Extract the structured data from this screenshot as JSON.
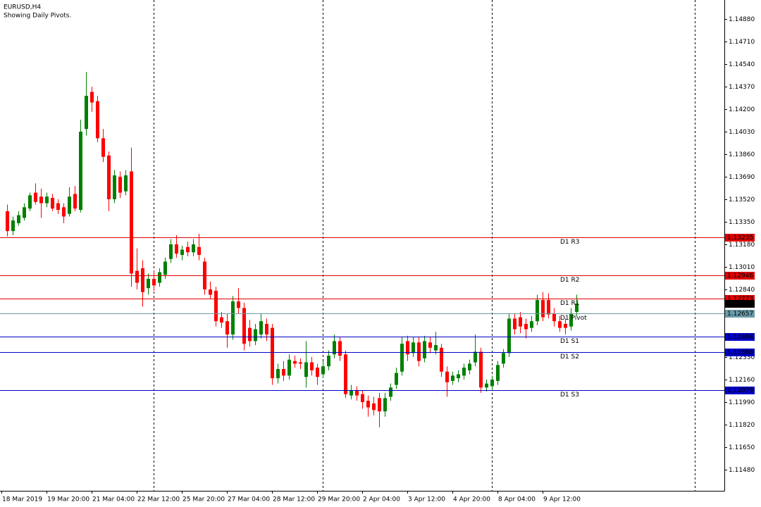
{
  "chart_data": {
    "type": "candlestick",
    "title": "EURUSD,H4",
    "subtitle": "Showing Daily Pivots.",
    "categories": [
      "18 Mar 2019",
      null,
      null,
      null,
      null,
      null,
      null,
      null,
      "19 Mar 20:00",
      null,
      null,
      null,
      null,
      null,
      null,
      null,
      "21 Mar 04:00",
      null,
      null,
      null,
      null,
      null,
      null,
      null,
      "22 Mar 12:00",
      null,
      null,
      null,
      null,
      null,
      null,
      null,
      "25 Mar 20:00",
      null,
      null,
      null,
      null,
      null,
      null,
      null,
      "27 Mar 04:00",
      null,
      null,
      null,
      null,
      null,
      null,
      null,
      "28 Mar 12:00",
      null,
      null,
      null,
      null,
      null,
      null,
      null,
      "29 Mar 20:00",
      null,
      null,
      null,
      null,
      null,
      null,
      null,
      "2 Apr 04:00",
      null,
      null,
      null,
      null,
      null,
      null,
      null,
      "3 Apr 12:00",
      null,
      null,
      null,
      null,
      null,
      null,
      null,
      "4 Apr 20:00",
      null,
      null,
      null,
      null,
      null,
      null,
      null,
      "8 Apr 04:00",
      null,
      null,
      null,
      null,
      null,
      null,
      null,
      "9 Apr 12:00",
      null,
      null,
      null,
      null,
      null
    ],
    "candles": [
      [
        1.1343,
        1.1348,
        1.1324,
        1.1328
      ],
      [
        1.1328,
        1.1339,
        1.1325,
        1.1336
      ],
      [
        1.1334,
        1.1343,
        1.1332,
        1.134
      ],
      [
        1.1338,
        1.1349,
        1.1336,
        1.1346
      ],
      [
        1.1345,
        1.1357,
        1.1343,
        1.1355
      ],
      [
        1.1357,
        1.1364,
        1.1348,
        1.135
      ],
      [
        1.1354,
        1.136,
        1.1338,
        1.1349
      ],
      [
        1.1349,
        1.1357,
        1.1346,
        1.1354
      ],
      [
        1.1353,
        1.1356,
        1.1343,
        1.1345
      ],
      [
        1.1349,
        1.1352,
        1.1341,
        1.1344
      ],
      [
        1.1346,
        1.1349,
        1.1334,
        1.1339
      ],
      [
        1.1341,
        1.1361,
        1.1339,
        1.1354
      ],
      [
        1.1356,
        1.1362,
        1.1343,
        1.1345
      ],
      [
        1.1344,
        1.1412,
        1.1342,
        1.1403
      ],
      [
        1.1405,
        1.1448,
        1.14,
        1.143
      ],
      [
        1.1433,
        1.1437,
        1.1418,
        1.1425
      ],
      [
        1.1426,
        1.143,
        1.1395,
        1.1398
      ],
      [
        1.1398,
        1.1405,
        1.138,
        1.1384
      ],
      [
        1.1385,
        1.1388,
        1.1343,
        1.1352
      ],
      [
        1.1352,
        1.1374,
        1.1349,
        1.137
      ],
      [
        1.1369,
        1.1373,
        1.1353,
        1.1357
      ],
      [
        1.1358,
        1.1374,
        1.1355,
        1.137
      ],
      [
        1.1373,
        1.1391,
        1.1286,
        1.1296
      ],
      [
        1.1298,
        1.1315,
        1.1284,
        1.1289
      ],
      [
        1.13,
        1.1306,
        1.1271,
        1.1282
      ],
      [
        1.1285,
        1.1296,
        1.128,
        1.1292
      ],
      [
        1.1292,
        1.1298,
        1.1283,
        1.1287
      ],
      [
        1.1289,
        1.13,
        1.1286,
        1.1297
      ],
      [
        1.1295,
        1.1308,
        1.1292,
        1.1305
      ],
      [
        1.1307,
        1.1322,
        1.1304,
        1.1318
      ],
      [
        1.1318,
        1.1325,
        1.1308,
        1.1311
      ],
      [
        1.131,
        1.1317,
        1.1306,
        1.1314
      ],
      [
        1.1316,
        1.132,
        1.1309,
        1.1312
      ],
      [
        1.1312,
        1.1322,
        1.1309,
        1.1318
      ],
      [
        1.1316,
        1.1326,
        1.1306,
        1.131
      ],
      [
        1.1305,
        1.1308,
        1.128,
        1.1284
      ],
      [
        1.1284,
        1.129,
        1.1277,
        1.128
      ],
      [
        1.1283,
        1.1286,
        1.1256,
        1.126
      ],
      [
        1.1263,
        1.1267,
        1.1255,
        1.1259
      ],
      [
        1.126,
        1.1266,
        1.124,
        1.125
      ],
      [
        1.125,
        1.1279,
        1.1246,
        1.1275
      ],
      [
        1.1275,
        1.1285,
        1.1266,
        1.127
      ],
      [
        1.127,
        1.1274,
        1.1238,
        1.1243
      ],
      [
        1.1255,
        1.1261,
        1.1241,
        1.1245
      ],
      [
        1.1245,
        1.1258,
        1.1242,
        1.1254
      ],
      [
        1.125,
        1.1266,
        1.1247,
        1.126
      ],
      [
        1.1258,
        1.1262,
        1.1245,
        1.125
      ],
      [
        1.1255,
        1.1258,
        1.1212,
        1.1217
      ],
      [
        1.1217,
        1.1228,
        1.1213,
        1.1224
      ],
      [
        1.1224,
        1.123,
        1.1215,
        1.1219
      ],
      [
        1.1219,
        1.1235,
        1.1216,
        1.1231
      ],
      [
        1.123,
        1.1234,
        1.1225,
        1.1228
      ],
      [
        1.1229,
        1.1232,
        1.1224,
        1.1228
      ],
      [
        1.1218,
        1.1245,
        1.121,
        1.1229
      ],
      [
        1.1229,
        1.1233,
        1.1219,
        1.1223
      ],
      [
        1.1225,
        1.1228,
        1.1212,
        1.1218
      ],
      [
        1.122,
        1.123,
        1.1217,
        1.1226
      ],
      [
        1.1226,
        1.1238,
        1.1223,
        1.1234
      ],
      [
        1.1235,
        1.125,
        1.1232,
        1.1245
      ],
      [
        1.1245,
        1.1248,
        1.123,
        1.1234
      ],
      [
        1.1235,
        1.1238,
        1.1202,
        1.1205
      ],
      [
        1.1204,
        1.1212,
        1.1201,
        1.1208
      ],
      [
        1.1208,
        1.1211,
        1.12,
        1.1204
      ],
      [
        1.1205,
        1.1208,
        1.1194,
        1.1199
      ],
      [
        1.12,
        1.1204,
        1.1188,
        1.1195
      ],
      [
        1.1198,
        1.1203,
        1.1189,
        1.1193
      ],
      [
        1.1202,
        1.1206,
        1.118,
        1.1192
      ],
      [
        1.1192,
        1.1206,
        1.1188,
        1.1202
      ],
      [
        1.1203,
        1.1213,
        1.12,
        1.121
      ],
      [
        1.1212,
        1.1225,
        1.1209,
        1.1221
      ],
      [
        1.1222,
        1.1248,
        1.1219,
        1.1243
      ],
      [
        1.1245,
        1.1249,
        1.123,
        1.1235
      ],
      [
        1.1236,
        1.1248,
        1.1233,
        1.1244
      ],
      [
        1.1244,
        1.1248,
        1.1226,
        1.123
      ],
      [
        1.1232,
        1.1249,
        1.1229,
        1.1245
      ],
      [
        1.1244,
        1.1248,
        1.1236,
        1.124
      ],
      [
        1.1238,
        1.1252,
        1.1235,
        1.1242
      ],
      [
        1.124,
        1.1243,
        1.1218,
        1.1222
      ],
      [
        1.1222,
        1.1226,
        1.1203,
        1.1214
      ],
      [
        1.1215,
        1.1222,
        1.1212,
        1.1219
      ],
      [
        1.1217,
        1.1223,
        1.1214,
        1.122
      ],
      [
        1.1219,
        1.1228,
        1.1216,
        1.1225
      ],
      [
        1.1223,
        1.1231,
        1.122,
        1.1228
      ],
      [
        1.1229,
        1.125,
        1.1226,
        1.1237
      ],
      [
        1.1237,
        1.124,
        1.1206,
        1.121
      ],
      [
        1.121,
        1.1216,
        1.1207,
        1.1213
      ],
      [
        1.1211,
        1.1219,
        1.1208,
        1.1216
      ],
      [
        1.1215,
        1.123,
        1.1212,
        1.1227
      ],
      [
        1.1228,
        1.1239,
        1.1225,
        1.1236
      ],
      [
        1.1236,
        1.1266,
        1.1233,
        1.1262
      ],
      [
        1.1262,
        1.1266,
        1.125,
        1.1254
      ],
      [
        1.1263,
        1.1267,
        1.1251,
        1.1256
      ],
      [
        1.1258,
        1.1262,
        1.1247,
        1.1254
      ],
      [
        1.1255,
        1.1264,
        1.1252,
        1.126
      ],
      [
        1.126,
        1.128,
        1.1257,
        1.1276
      ],
      [
        1.1276,
        1.1282,
        1.126,
        1.1263
      ],
      [
        1.1276,
        1.1281,
        1.1262,
        1.1265
      ],
      [
        1.1266,
        1.127,
        1.1256,
        1.126
      ],
      [
        1.126,
        1.1264,
        1.1252,
        1.1255
      ],
      [
        1.1258,
        1.1262,
        1.125,
        1.1255
      ],
      [
        1.1256,
        1.127,
        1.1253,
        1.1266
      ],
      [
        1.1267,
        1.128,
        1.1264,
        1.12733
      ]
    ],
    "up_color": "#008000",
    "down_color": "#ff0000",
    "ylim": [
      1.11321,
      1.15023
    ],
    "yticks": [
      {
        "value": 1.1488,
        "label": "1.14880"
      },
      {
        "value": 1.1471,
        "label": "1.14710"
      },
      {
        "value": 1.1454,
        "label": "1.14540"
      },
      {
        "value": 1.1437,
        "label": "1.14370"
      },
      {
        "value": 1.142,
        "label": "1.14200"
      },
      {
        "value": 1.1403,
        "label": "1.14030"
      },
      {
        "value": 1.1386,
        "label": "1.13860"
      },
      {
        "value": 1.1369,
        "label": "1.13690"
      },
      {
        "value": 1.1352,
        "label": "1.13520"
      },
      {
        "value": 1.1335,
        "label": "1.13350"
      },
      {
        "value": 1.1318,
        "label": "1.13180"
      },
      {
        "value": 1.1301,
        "label": "1.13010"
      },
      {
        "value": 1.1284,
        "label": "1.12840"
      },
      {
        "value": 1.1233,
        "label": "1.12330"
      },
      {
        "value": 1.1216,
        "label": "1.12160"
      },
      {
        "value": 1.1199,
        "label": "1.11990"
      },
      {
        "value": 1.1182,
        "label": "1.11820"
      },
      {
        "value": 1.1165,
        "label": "1.11650"
      },
      {
        "value": 1.1148,
        "label": "1.11480"
      }
    ],
    "levels": [
      {
        "name": "D1 R3",
        "value": 1.13235,
        "color": "#e00000"
      },
      {
        "name": "D1 R2",
        "value": 1.12946,
        "color": "#e00000"
      },
      {
        "name": "D1 R1",
        "value": 1.12773,
        "color": "#e00000"
      },
      {
        "name": "D1 Pivot",
        "value": 1.12657,
        "color": "#6a9aa8"
      },
      {
        "name": "D1 S1",
        "value": 1.12484,
        "color": "#0000c8"
      },
      {
        "name": "D1 S2",
        "value": 1.12368,
        "color": "#0000c8"
      },
      {
        "name": "D1 S3",
        "value": 1.12079,
        "color": "#0000c8"
      }
    ],
    "current_price": 1.12733
  }
}
